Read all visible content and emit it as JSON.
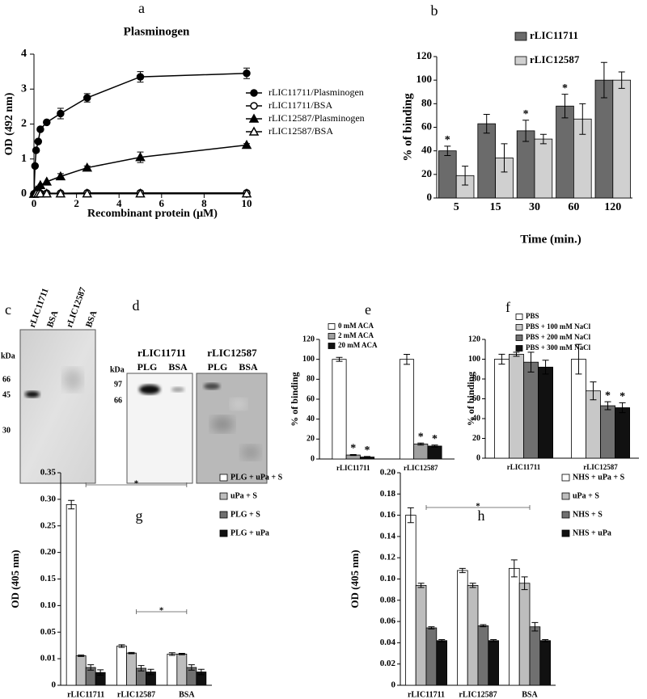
{
  "panel_labels": [
    "a",
    "b",
    "c",
    "d",
    "e",
    "f",
    "g",
    "h"
  ],
  "blots": {
    "c": {
      "lanes": [
        "rLIC11711",
        "BSA",
        "rLIC12587",
        "BSA"
      ],
      "unit": "kDa",
      "markers": [
        "66",
        "45",
        "30"
      ]
    },
    "d": {
      "groups": [
        {
          "name": "rLIC11711",
          "lanes": [
            "PLG",
            "BSA"
          ]
        },
        {
          "name": "rLIC12587",
          "lanes": [
            "PLG",
            "BSA"
          ]
        }
      ],
      "unit": "kDa",
      "markers": [
        "97",
        "66"
      ]
    }
  },
  "chart_data": [
    {
      "type": "line",
      "title": "Plasminogen",
      "x_label": "Recombinant protein (μM)",
      "y_label": "OD (492 nm)",
      "x": [
        0,
        0.05,
        0.1,
        0.2,
        0.3,
        0.6,
        1.25,
        2.5,
        5,
        10
      ],
      "xlim": [
        0,
        10
      ],
      "xticks": [
        0,
        2,
        4,
        6,
        8,
        10
      ],
      "ylim": [
        0,
        4
      ],
      "yticks": [
        0,
        1,
        2,
        3,
        4
      ],
      "series": [
        {
          "name": "rLIC11711/Plasminogen",
          "color": "#000000",
          "marker": "filled-circle",
          "values": [
            0,
            0.8,
            1.25,
            1.5,
            1.85,
            2.05,
            2.3,
            2.75,
            3.35,
            3.45
          ],
          "errors": [
            0,
            0,
            0,
            0,
            0,
            0,
            0.15,
            0.12,
            0.15,
            0.15
          ]
        },
        {
          "name": "rLIC11711/BSA",
          "color": "#000000",
          "marker": "open-circle",
          "values": [
            0,
            0.02,
            0.02,
            0.02,
            0.02,
            0.02,
            0.02,
            0.03,
            0.03,
            0.03
          ],
          "errors": [
            0,
            0,
            0,
            0,
            0,
            0,
            0,
            0,
            0.06,
            0.06
          ]
        },
        {
          "name": "rLIC12587/Plasminogen",
          "color": "#000000",
          "marker": "filled-triangle",
          "values": [
            0,
            0.05,
            0.1,
            0.15,
            0.25,
            0.35,
            0.5,
            0.75,
            1.05,
            1.4
          ],
          "errors": [
            0,
            0,
            0,
            0,
            0,
            0,
            0.08,
            0.05,
            0.15,
            0.04
          ]
        },
        {
          "name": "rLIC12587/BSA",
          "color": "#000000",
          "marker": "open-triangle",
          "values": [
            0,
            0.01,
            0.01,
            0.01,
            0.01,
            0.01,
            0.01,
            0.01,
            0.01,
            0.01
          ],
          "errors": [
            0,
            0,
            0,
            0,
            0,
            0,
            0,
            0,
            0,
            0
          ]
        }
      ]
    },
    {
      "type": "bar",
      "x_label": "Time (min.)",
      "y_label": "% of binding",
      "categories": [
        "5",
        "15",
        "30",
        "60",
        "120"
      ],
      "ylim": [
        0,
        120
      ],
      "yticks": [
        0,
        20,
        40,
        60,
        80,
        100,
        120
      ],
      "series": [
        {
          "name": "rLIC11711",
          "color": "#6b6b6b",
          "values": [
            40,
            63,
            57,
            78,
            100
          ],
          "errors": [
            4,
            8,
            9,
            10,
            15
          ],
          "stars": [
            "*",
            null,
            "*",
            "*",
            null
          ]
        },
        {
          "name": "rLIC12587",
          "color": "#d0d0d0",
          "values": [
            19,
            34,
            50,
            67,
            100
          ],
          "errors": [
            8,
            12,
            4,
            13,
            7
          ]
        }
      ]
    },
    {
      "type": "bar",
      "y_label": "% of binding",
      "categories": [
        "rLIC11711",
        "rLIC12587"
      ],
      "ylim": [
        0,
        120
      ],
      "yticks": [
        0,
        20,
        40,
        60,
        80,
        100,
        120
      ],
      "series": [
        {
          "name": "0 mM ACA",
          "color": "#ffffff",
          "values": [
            100,
            100
          ],
          "errors": [
            2,
            5
          ]
        },
        {
          "name": "2 mM ACA",
          "color": "#a0a0a0",
          "values": [
            4,
            15
          ],
          "errors": [
            0.5,
            1
          ],
          "stars": [
            "*",
            "*"
          ]
        },
        {
          "name": "20 mM ACA",
          "color": "#111111",
          "values": [
            2,
            13
          ],
          "errors": [
            0.5,
            1
          ],
          "stars": [
            "*",
            "*"
          ]
        }
      ]
    },
    {
      "type": "bar",
      "y_label": "% of binding",
      "categories": [
        "rLIC11711",
        "rLIC12587"
      ],
      "ylim": [
        0,
        120
      ],
      "yticks": [
        0,
        20,
        40,
        60,
        80,
        100,
        120
      ],
      "series": [
        {
          "name": "PBS",
          "color": "#ffffff",
          "values": [
            100,
            100
          ],
          "errors": [
            5,
            15
          ]
        },
        {
          "name": "PBS + 100 mM NaCl",
          "color": "#c8c8c8",
          "values": [
            105,
            68
          ],
          "errors": [
            2,
            9
          ]
        },
        {
          "name": "PBS + 200 mM NaCl",
          "color": "#707070",
          "values": [
            97,
            53
          ],
          "errors": [
            10,
            4
          ],
          "stars": [
            null,
            "*"
          ]
        },
        {
          "name": "PBS + 300 mM NaCl",
          "color": "#111111",
          "values": [
            92,
            51
          ],
          "errors": [
            7,
            5
          ],
          "stars": [
            null,
            "*"
          ]
        }
      ]
    },
    {
      "type": "bar",
      "y_label": "OD (405 nm)",
      "categories": [
        "rLIC11711",
        "rLIC12587",
        "BSA"
      ],
      "ylim": [
        0,
        0.35
      ],
      "yticks": [
        0,
        0.01,
        0.05,
        {
          "value": 0.1,
          "label": "0.10"
        },
        0.15,
        {
          "value": 0.2,
          "label": "0.20"
        },
        0.25,
        {
          "value": 0.3,
          "label": "0.30"
        },
        0.35
      ],
      "series": [
        {
          "name": "PLG + uPa + S",
          "color": "#ffffff",
          "values": [
            0.29,
            0.029,
            0.017
          ],
          "errors": [
            0.008,
            0.002,
            0.002
          ]
        },
        {
          "name": "uPa + S",
          "color": "#bdbdbd",
          "values": [
            0.0144,
            0.0185,
            0.017
          ],
          "errors": [
            0.001,
            0.001,
            0.001
          ]
        },
        {
          "name": "PLG + S",
          "color": "#707070",
          "values": [
            0.0067,
            0.0064,
            0.0067
          ],
          "errors": [
            0.001,
            0.001,
            0.001
          ]
        },
        {
          "name": "PLG + uPa",
          "color": "#111111",
          "values": [
            0.0048,
            0.005,
            0.005
          ],
          "errors": [
            0.001,
            0.001,
            0.001
          ]
        }
      ],
      "brackets": [
        {
          "from": "rLIC11711",
          "to": "BSA",
          "label": "*"
        },
        {
          "from": "rLIC12587",
          "to": "BSA",
          "label": "*"
        }
      ]
    },
    {
      "type": "bar",
      "y_label": "OD (405 nm)",
      "categories": [
        "rLIC11711",
        "rLIC12587",
        "BSA"
      ],
      "ylim": [
        0,
        0.2
      ],
      "yticks": [
        0,
        0.02,
        0.04,
        0.06,
        0.08,
        {
          "value": 0.1,
          "label": "0.10"
        },
        0.12,
        0.14,
        0.16,
        0.18,
        {
          "value": 0.2,
          "label": "0.20"
        }
      ],
      "series": [
        {
          "name": "NHS + uPa + S",
          "color": "#ffffff",
          "values": [
            0.16,
            0.108,
            0.11
          ],
          "errors": [
            0.007,
            0.002,
            0.008
          ]
        },
        {
          "name": "uPa + S",
          "color": "#bdbdbd",
          "values": [
            0.094,
            0.094,
            0.096
          ],
          "errors": [
            0.002,
            0.002,
            0.006
          ]
        },
        {
          "name": "NHS + S",
          "color": "#707070",
          "values": [
            0.054,
            0.056,
            0.055
          ],
          "errors": [
            0.001,
            0.001,
            0.004
          ]
        },
        {
          "name": "NHS + uPa",
          "color": "#111111",
          "values": [
            0.042,
            0.042,
            0.042
          ],
          "errors": [
            0.001,
            0.001,
            0.001
          ]
        }
      ],
      "brackets": [
        {
          "from": "rLIC11711",
          "to": "BSA",
          "label": "*"
        }
      ]
    }
  ]
}
